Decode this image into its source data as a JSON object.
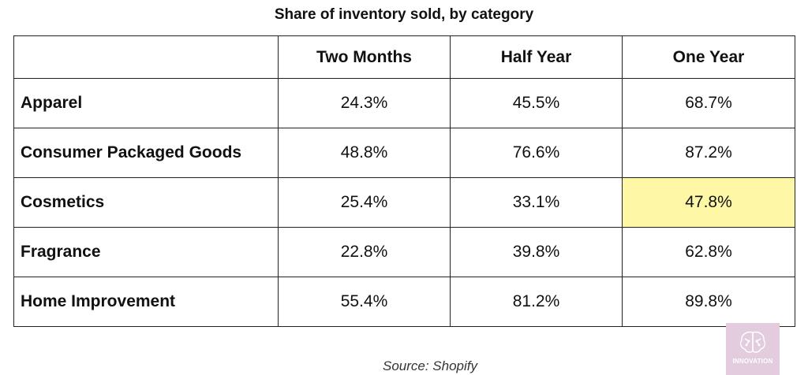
{
  "chart_data": {
    "type": "table",
    "title": "Share of inventory sold, by category",
    "columns": [
      "Two Months",
      "Half Year",
      "One Year"
    ],
    "rows": [
      {
        "label": "Apparel",
        "values": [
          "24.3%",
          "45.5%",
          "68.7%"
        ]
      },
      {
        "label": "Consumer Packaged Goods",
        "values": [
          "48.8%",
          "76.6%",
          "87.2%"
        ]
      },
      {
        "label": "Cosmetics",
        "values": [
          "25.4%",
          "33.1%",
          "47.8%"
        ]
      },
      {
        "label": "Fragrance",
        "values": [
          "22.8%",
          "39.8%",
          "62.8%"
        ]
      },
      {
        "label": "Home Improvement",
        "values": [
          "55.4%",
          "81.2%",
          "89.8%"
        ]
      }
    ],
    "highlight": {
      "row": 2,
      "column": 2,
      "color": "#fdf7a6"
    },
    "source": "Source: Shopify"
  },
  "logo": {
    "text": "INNOVATION",
    "icon": "brain-icon",
    "background": "#e2ccde"
  }
}
